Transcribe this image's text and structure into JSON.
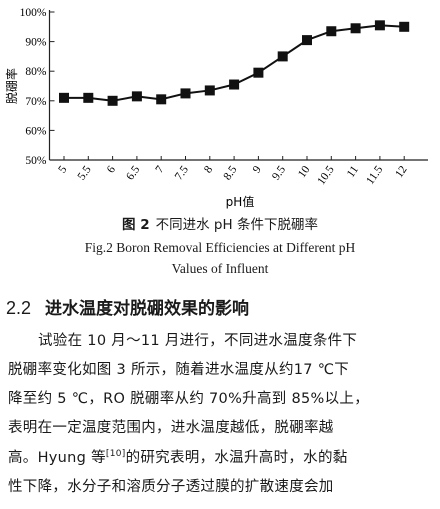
{
  "chart_data": {
    "type": "line",
    "ylabel": "脱硼率",
    "xlabel": "pH值",
    "y_ticks": [
      "100%",
      "90%",
      "80%",
      "70%",
      "60%",
      "50%"
    ],
    "x_ticks": [
      "5",
      "5.5",
      "6",
      "6.5",
      "7",
      "7.5",
      "8",
      "8.5",
      "9",
      "9.5",
      "10",
      "10.5",
      "11",
      "11.5",
      "12"
    ],
    "ylim": [
      50,
      100
    ],
    "grid": false,
    "marker": "square",
    "x": [
      5,
      5.5,
      6,
      6.5,
      7,
      7.5,
      8,
      8.5,
      9,
      9.5,
      10,
      10.5,
      11,
      11.5,
      12
    ],
    "values": [
      71,
      71,
      70,
      71.5,
      70.5,
      72.5,
      73.5,
      75.5,
      79.5,
      85,
      90.5,
      93.5,
      94.5,
      95.5,
      95
    ]
  },
  "caption": {
    "fig_label": "图 2",
    "cn": "不同进水 pH 条件下脱硼率",
    "en_line1": "Fig.2   Boron Removal Efficiencies at Different pH",
    "en_line2": "Values of Influent"
  },
  "section": {
    "number": "2.2",
    "title": "进水温度对脱硼效果的影响"
  },
  "paragraph": {
    "line1": "试验在 10 月～11 月进行，不同进水温度条件下",
    "line2": "脱硼率变化如图 3 所示，随着进水温度从约17 ℃下",
    "line3": "降至约 5 ℃，RO 脱硼率从约 70%升高到 85%以上，",
    "line4": "表明在一定温度范围内，进水温度越低，脱硼率越",
    "line5a": "高。Hyung 等",
    "line5_cite": "[10]",
    "line5b": "的研究表明，水温升高时，水的黏",
    "line6": "性下降，水分子和溶质分子透过膜的扩散速度会加"
  }
}
